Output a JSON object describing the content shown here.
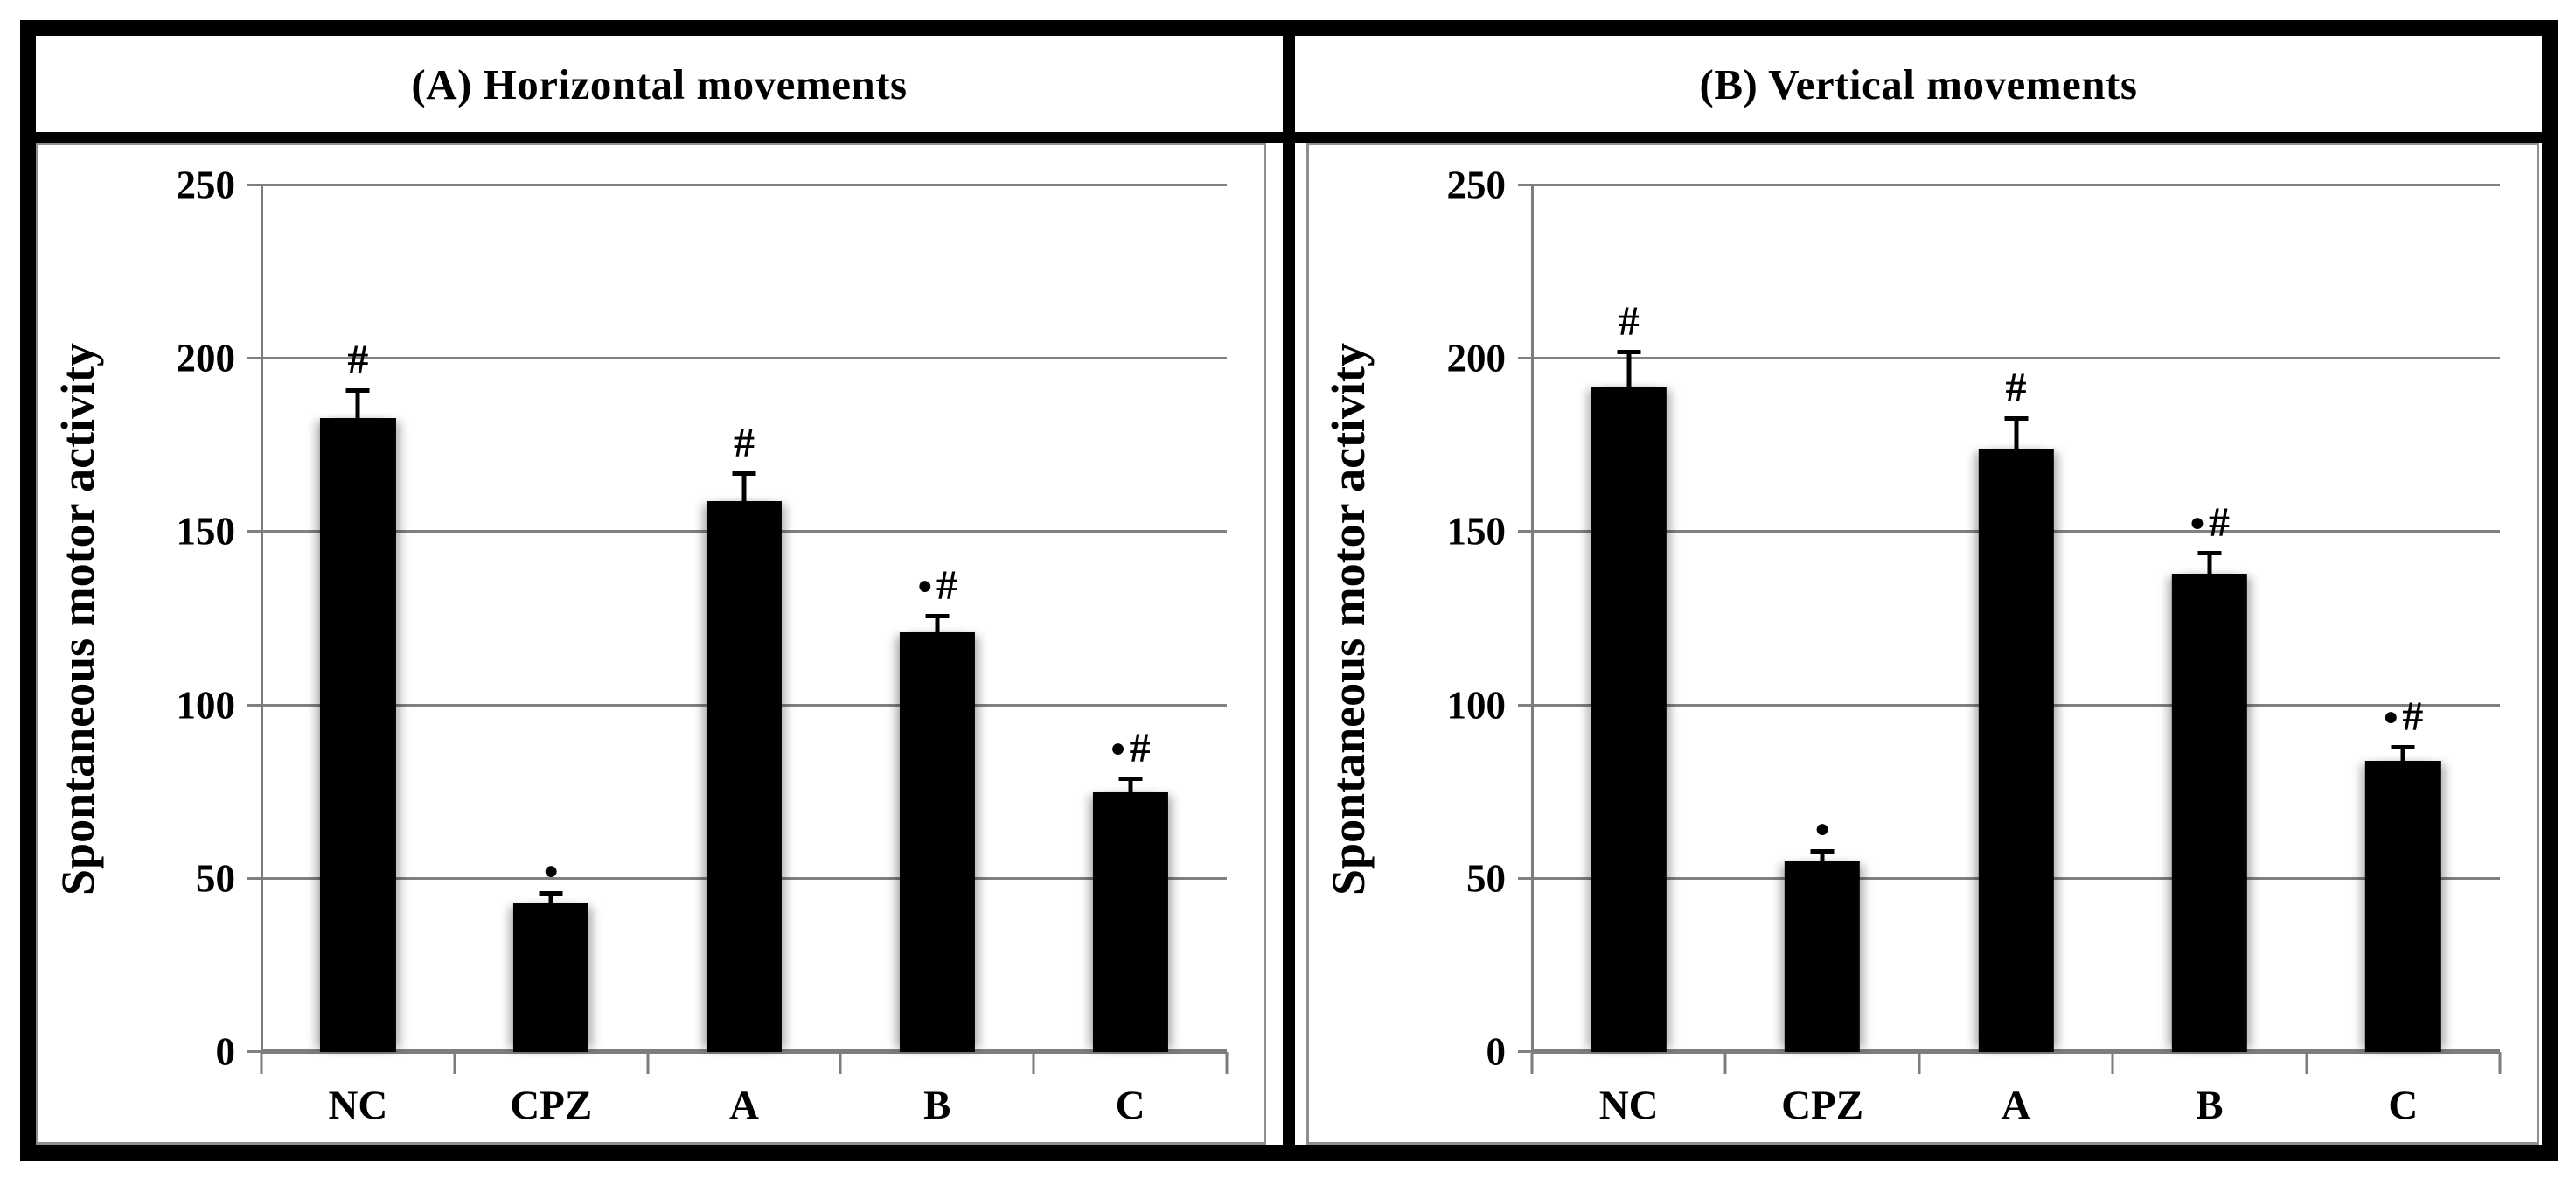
{
  "figure_title": "Spontaneous motor activity bar charts",
  "style": {
    "bar_color": "#000000",
    "grid_color": "#808080",
    "frame_color": "#8f8f8f",
    "outer_border_color": "#000000",
    "background": "#ffffff"
  },
  "chart_data": [
    {
      "type": "bar",
      "title": "(A) Horizontal movements",
      "ylabel": "Spontaneous motor activity",
      "xlabel": "",
      "categories": [
        "NC",
        "CPZ",
        "A",
        "B",
        "C"
      ],
      "values": [
        183,
        43,
        159,
        121,
        75
      ],
      "errors": [
        8,
        3,
        8,
        5,
        4
      ],
      "annotations": [
        "#",
        "●",
        "#",
        "●#",
        "●#"
      ],
      "ylim": [
        0,
        250
      ],
      "yticks": [
        0,
        50,
        100,
        150,
        200,
        250
      ],
      "grid": true,
      "legend": "none",
      "bar_color": "#000000"
    },
    {
      "type": "bar",
      "title": "(B) Vertical movements",
      "ylabel": "Spontaneous motor activity",
      "xlabel": "",
      "categories": [
        "NC",
        "CPZ",
        "A",
        "B",
        "C"
      ],
      "values": [
        192,
        55,
        174,
        138,
        84
      ],
      "errors": [
        10,
        3,
        9,
        6,
        4
      ],
      "annotations": [
        "#",
        "●",
        "#",
        "●#",
        "●#"
      ],
      "ylim": [
        0,
        250
      ],
      "yticks": [
        0,
        50,
        100,
        150,
        200,
        250
      ],
      "grid": true,
      "legend": "none",
      "bar_color": "#000000"
    }
  ]
}
